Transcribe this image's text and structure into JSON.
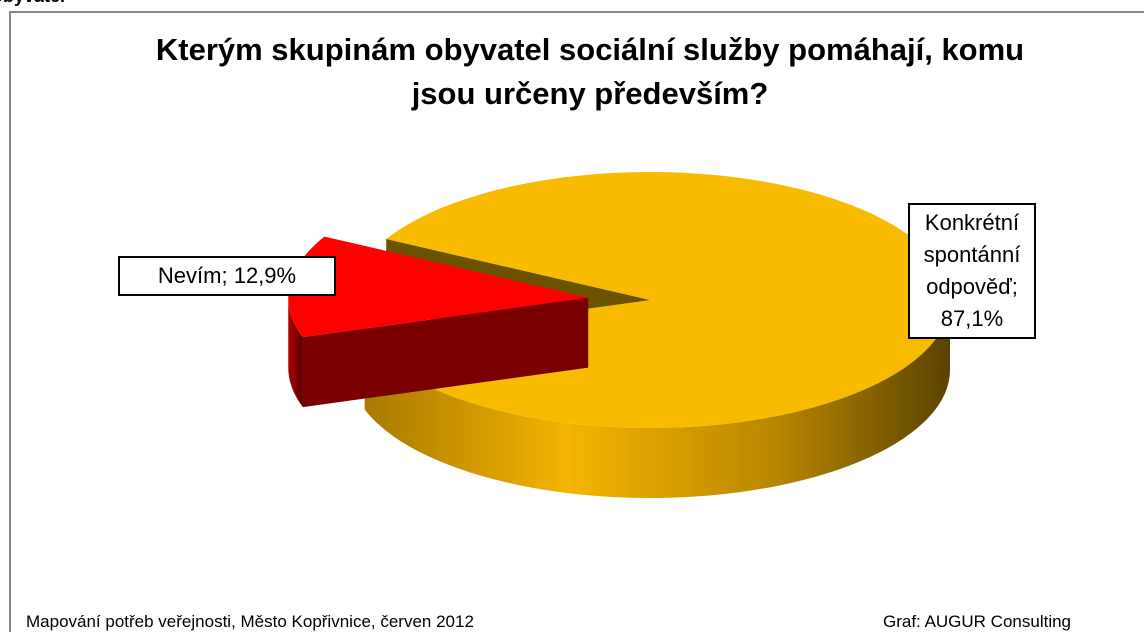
{
  "chart_data": {
    "type": "pie",
    "title": "Kterým skupinám obyvatel sociální služby pomáhají, komu jsou určeny především?",
    "categories": [
      "Nevím",
      "Konkrétní spontánní odpověď"
    ],
    "values": [
      12.9,
      87.1
    ],
    "value_labels": [
      "12,9%",
      "87,1%"
    ],
    "colors": [
      "#ff0000",
      "#f8bb00"
    ],
    "exploded": [
      true,
      false
    ],
    "header_fragment": "obyvatel",
    "source": "Mapování potřeb veřejnosti, Město Kopřivnice, červen 2012",
    "credit": "Graf: AUGUR Consulting"
  }
}
